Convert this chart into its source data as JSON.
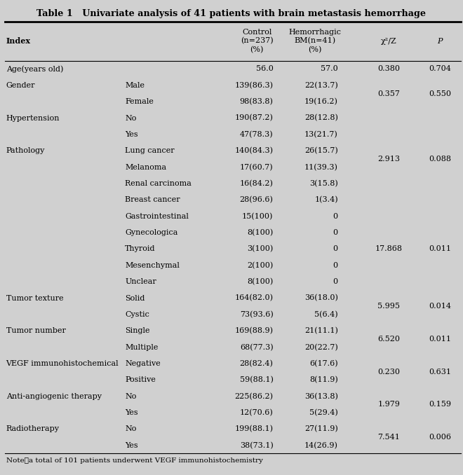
{
  "title": "Table 1   Univariate analysis of 41 patients with brain metastasis hemorrhage",
  "background_color": "#d0d0d0",
  "note": "Note：a total of 101 patients underwent VEGF immunohistochemistry",
  "rows": [
    {
      "index": "Age(years old)",
      "sub": "",
      "ctrl": "56.0",
      "hemo": "57.0",
      "stat": "0.380",
      "p": "0.704"
    },
    {
      "index": "Gender",
      "sub": "Male",
      "ctrl": "139(86.3)",
      "hemo": "22(13.7)",
      "stat": "0.357",
      "p": "0.550"
    },
    {
      "index": "",
      "sub": "Female",
      "ctrl": "98(83.8)",
      "hemo": "19(16.2)",
      "stat": "",
      "p": ""
    },
    {
      "index": "Hypertension",
      "sub": "No",
      "ctrl": "190(87.2)",
      "hemo": "28(12.8)",
      "stat": "2.913",
      "p": "0.088"
    },
    {
      "index": "",
      "sub": "Yes",
      "ctrl": "47(78.3)",
      "hemo": "13(21.7)",
      "stat": "",
      "p": ""
    },
    {
      "index": "Pathology",
      "sub": "Lung cancer",
      "ctrl": "140(84.3)",
      "hemo": "26(15.7)",
      "stat": "",
      "p": ""
    },
    {
      "index": "",
      "sub": "Melanoma",
      "ctrl": "17(60.7)",
      "hemo": "11(39.3)",
      "stat": "",
      "p": ""
    },
    {
      "index": "",
      "sub": "Renal carcinoma",
      "ctrl": "16(84.2)",
      "hemo": "3(15.8)",
      "stat": "",
      "p": ""
    },
    {
      "index": "",
      "sub": "Breast cancer",
      "ctrl": "28(96.6)",
      "hemo": "1(3.4)",
      "stat": "",
      "p": ""
    },
    {
      "index": "",
      "sub": "Gastrointestinal",
      "ctrl": "15(100)",
      "hemo": "0",
      "stat": "17.868",
      "p": "0.011"
    },
    {
      "index": "",
      "sub": "Gynecologica",
      "ctrl": "8(100)",
      "hemo": "0",
      "stat": "",
      "p": ""
    },
    {
      "index": "",
      "sub": "Thyroid",
      "ctrl": "3(100)",
      "hemo": "0",
      "stat": "",
      "p": ""
    },
    {
      "index": "",
      "sub": "Mesenchymal",
      "ctrl": "2(100)",
      "hemo": "0",
      "stat": "",
      "p": ""
    },
    {
      "index": "",
      "sub": "Unclear",
      "ctrl": "8(100)",
      "hemo": "0",
      "stat": "",
      "p": ""
    },
    {
      "index": "Tumor texture",
      "sub": "Solid",
      "ctrl": "164(82.0)",
      "hemo": "36(18.0)",
      "stat": "5.995",
      "p": "0.014"
    },
    {
      "index": "",
      "sub": "Cystic",
      "ctrl": "73(93.6)",
      "hemo": "5(6.4)",
      "stat": "",
      "p": ""
    },
    {
      "index": "Tumor number",
      "sub": "Single",
      "ctrl": "169(88.9)",
      "hemo": "21(11.1)",
      "stat": "6.520",
      "p": "0.011"
    },
    {
      "index": "",
      "sub": "Multiple",
      "ctrl": "68(77.3)",
      "hemo": "20(22.7)",
      "stat": "",
      "p": ""
    },
    {
      "index": "VEGF immunohistochemical",
      "sub": "Negative",
      "ctrl": "28(82.4)",
      "hemo": "6(17.6)",
      "stat": "0.230",
      "p": "0.631"
    },
    {
      "index": "",
      "sub": "Positive",
      "ctrl": "59(88.1)",
      "hemo": "8(11.9)",
      "stat": "",
      "p": ""
    },
    {
      "index": "Anti-angiogenic therapy",
      "sub": "No",
      "ctrl": "225(86.2)",
      "hemo": "36(13.8)",
      "stat": "1.979",
      "p": "0.159"
    },
    {
      "index": "",
      "sub": "Yes",
      "ctrl": "12(70.6)",
      "hemo": "5(29.4)",
      "stat": "",
      "p": ""
    },
    {
      "index": "Radiotherapy",
      "sub": "No",
      "ctrl": "199(88.1)",
      "hemo": "27(11.9)",
      "stat": "7.541",
      "p": "0.006"
    },
    {
      "index": "",
      "sub": "Yes",
      "ctrl": "38(73.1)",
      "hemo": "14(26.9)",
      "stat": "",
      "p": ""
    }
  ],
  "font_size": 8.0,
  "title_font_size": 9.2,
  "header_font_size": 8.0,
  "note_font_size": 7.5
}
